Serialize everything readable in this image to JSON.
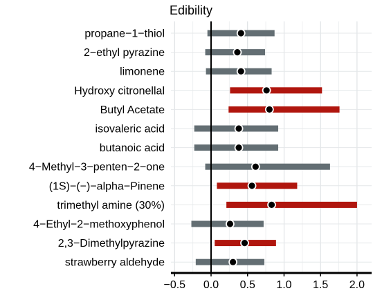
{
  "chart_data": {
    "type": "interval",
    "title": "Edibility",
    "xlabel": "",
    "ylabel": "",
    "xlim": [
      -0.55,
      2.2
    ],
    "x_ticks": [
      -0.5,
      0.0,
      0.5,
      1.0,
      1.5,
      2.0
    ],
    "x_tick_labels": [
      "−0.5",
      "0.0",
      "0.5",
      "1.0",
      "1.5",
      "2.0"
    ],
    "grid": true,
    "reference_line": 0,
    "colors": {
      "significant": "#b0160e",
      "not_significant": "#636e73",
      "point": "#000000",
      "point_outline": "#ffffff"
    },
    "rows": [
      {
        "label": "propane−1−thiol",
        "estimate": 0.41,
        "lower": -0.05,
        "upper": 0.87,
        "significant": false
      },
      {
        "label": "2−ethyl pyrazine",
        "estimate": 0.36,
        "lower": -0.08,
        "upper": 0.74,
        "significant": false
      },
      {
        "label": "limonene",
        "estimate": 0.41,
        "lower": -0.07,
        "upper": 0.83,
        "significant": false
      },
      {
        "label": "Hydroxy citronellal",
        "estimate": 0.76,
        "lower": 0.26,
        "upper": 1.52,
        "significant": true
      },
      {
        "label": "Butyl Acetate",
        "estimate": 0.8,
        "lower": 0.24,
        "upper": 1.76,
        "significant": true
      },
      {
        "label": "isovaleric acid",
        "estimate": 0.38,
        "lower": -0.23,
        "upper": 0.92,
        "significant": false
      },
      {
        "label": "butanoic acid",
        "estimate": 0.38,
        "lower": -0.23,
        "upper": 0.92,
        "significant": false
      },
      {
        "label": "4−Methyl−3−penten−2−one",
        "estimate": 0.61,
        "lower": -0.08,
        "upper": 1.63,
        "significant": false
      },
      {
        "label": "(1S)−(−)−alpha−Pinene",
        "estimate": 0.56,
        "lower": 0.08,
        "upper": 1.18,
        "significant": true
      },
      {
        "label": "trimethyl amine (30%)",
        "estimate": 0.83,
        "lower": 0.21,
        "upper": 2.0,
        "significant": true
      },
      {
        "label": "4−Ethyl−2−methoxyphenol",
        "estimate": 0.26,
        "lower": -0.27,
        "upper": 0.72,
        "significant": false
      },
      {
        "label": "2,3−Dimethylpyrazine",
        "estimate": 0.46,
        "lower": 0.05,
        "upper": 0.89,
        "significant": true
      },
      {
        "label": "strawberry aldehyde",
        "estimate": 0.3,
        "lower": -0.21,
        "upper": 0.73,
        "significant": false
      }
    ]
  }
}
